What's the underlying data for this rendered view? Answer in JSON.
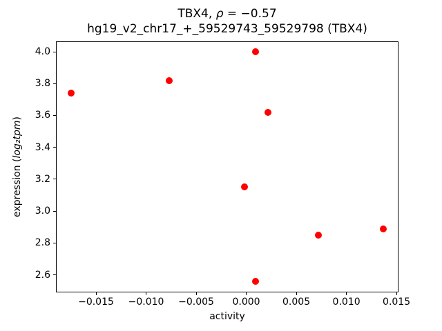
{
  "title": {
    "line1": {
      "prefix": "TBX4, ",
      "rho": "ρ",
      "suffix": " = −0.57"
    },
    "line2": "hg19_v2_chr17_+_59529743_59529798 (TBX4)"
  },
  "axes": {
    "xlabel": "activity",
    "ylabel": {
      "prefix": "expression (",
      "math": "log₂tpm",
      "suffix": ")"
    }
  },
  "chart_data": {
    "type": "scatter",
    "title": "TBX4, ρ = −0.57",
    "subtitle": "hg19_v2_chr17_+_59529743_59529798 (TBX4)",
    "xlabel": "activity",
    "ylabel": "expression (log₂tpm)",
    "marker_color": "#ff0000",
    "grid": false,
    "legend": null,
    "xlim": [
      -0.019,
      0.0152
    ],
    "ylim": [
      2.49,
      4.065
    ],
    "xticks": [
      -0.015,
      -0.01,
      -0.005,
      0.0,
      0.005,
      0.01,
      0.015
    ],
    "xtick_labels": [
      "−0.015",
      "−0.010",
      "−0.005",
      "0.000",
      "0.005",
      "0.010",
      "0.015"
    ],
    "yticks": [
      2.6,
      2.8,
      3.0,
      3.2,
      3.4,
      3.6,
      3.8,
      4.0
    ],
    "ytick_labels": [
      "2.6",
      "2.8",
      "3.0",
      "3.2",
      "3.4",
      "3.6",
      "3.8",
      "4.0"
    ],
    "points": [
      {
        "x": -0.0175,
        "y": 3.74
      },
      {
        "x": -0.0077,
        "y": 3.82
      },
      {
        "x": 0.0009,
        "y": 4.0
      },
      {
        "x": 0.0022,
        "y": 3.62
      },
      {
        "x": -0.0002,
        "y": 3.15
      },
      {
        "x": 0.0072,
        "y": 2.85
      },
      {
        "x": 0.0137,
        "y": 2.89
      },
      {
        "x": 0.0009,
        "y": 2.56
      }
    ]
  }
}
